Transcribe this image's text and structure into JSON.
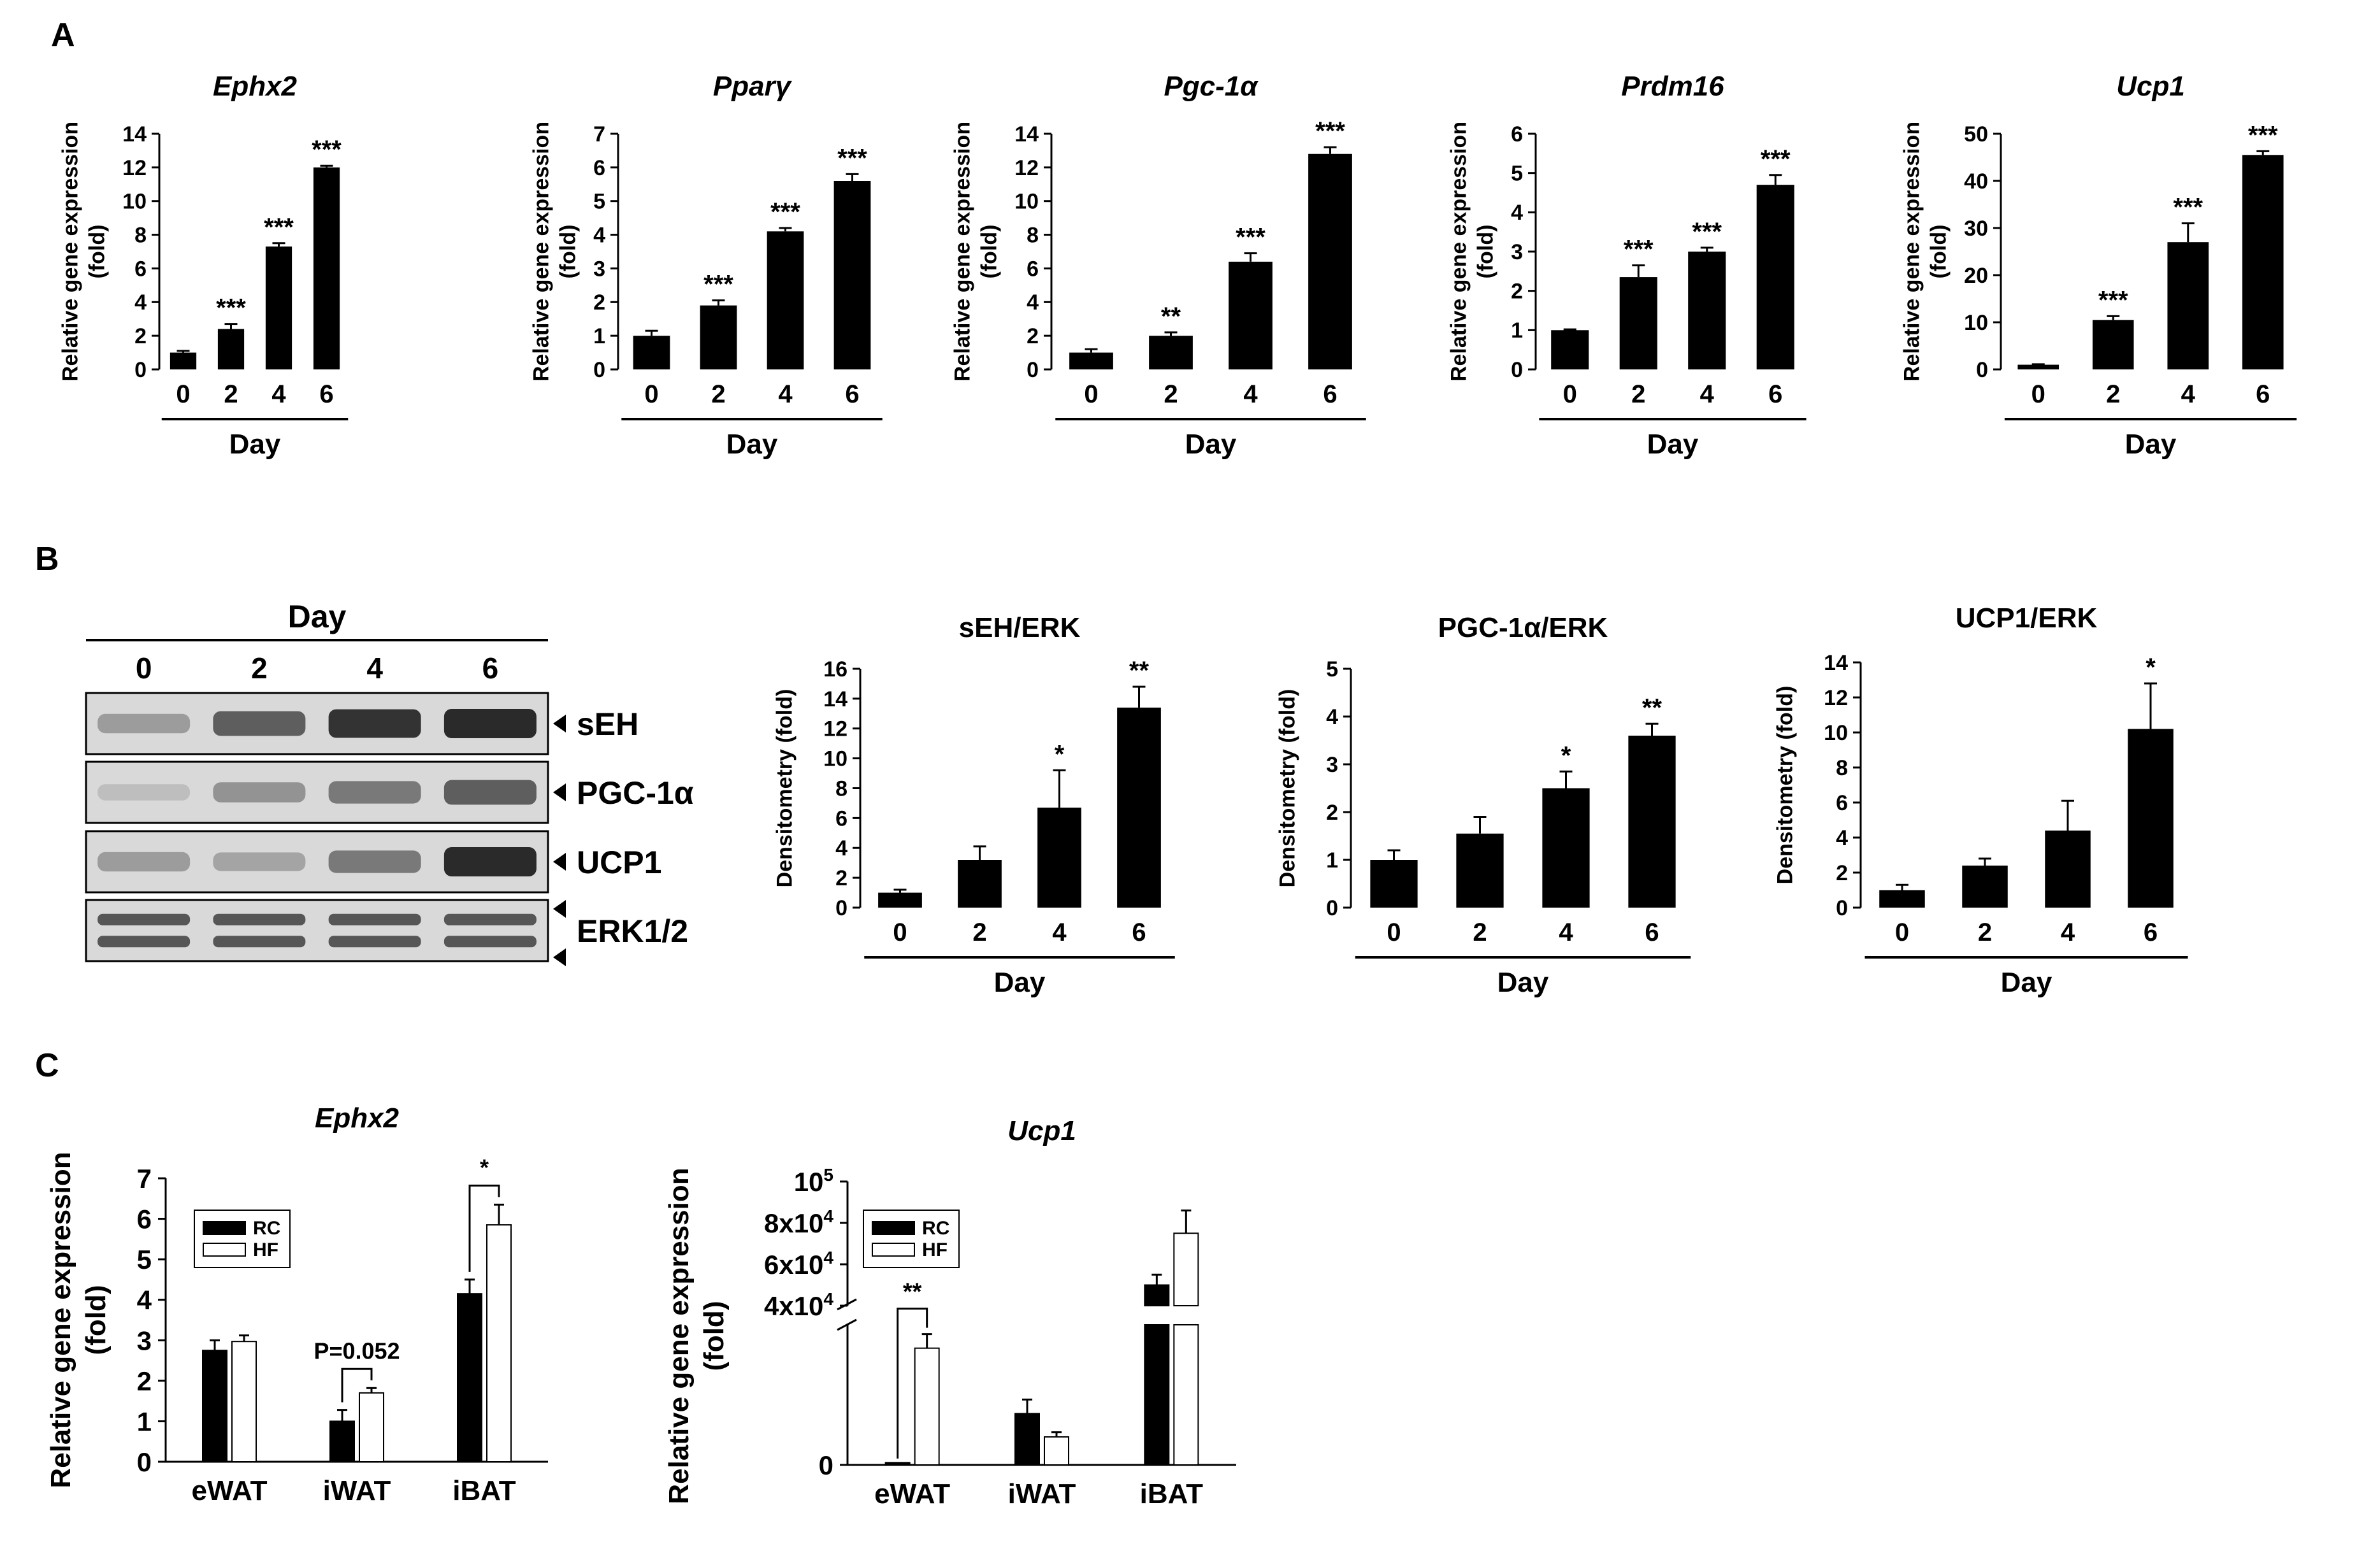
{
  "figure": {
    "panel_labels": [
      "A",
      "B",
      "C"
    ],
    "colors": {
      "bar": "#000000",
      "axis": "#000000",
      "background": "#ffffff",
      "hf_bar": "#ffffff",
      "blot_bg": "#d9d9d9",
      "band": "#2a2a2a"
    }
  },
  "chart_data": [
    {
      "id": "A1",
      "type": "bar",
      "title": "Ephx2",
      "title_italic": true,
      "categories": [
        "0",
        "2",
        "4",
        "6"
      ],
      "values": [
        1.0,
        2.4,
        7.3,
        12.0
      ],
      "errors": [
        0.1,
        0.3,
        0.2,
        0.1
      ],
      "significance": [
        "",
        "***",
        "***",
        "***"
      ],
      "ylim": [
        0,
        14
      ],
      "yticks": [
        0,
        2,
        4,
        6,
        8,
        10,
        12,
        14
      ],
      "ylabel": [
        "Relative gene expression",
        "(fold)"
      ],
      "xlabel": "Day"
    },
    {
      "id": "A2",
      "type": "bar",
      "title": "Pparγ",
      "title_italic": true,
      "categories": [
        "0",
        "2",
        "4",
        "6"
      ],
      "values": [
        1.0,
        1.9,
        4.1,
        5.6
      ],
      "errors": [
        0.15,
        0.15,
        0.1,
        0.2
      ],
      "significance": [
        "",
        "***",
        "***",
        "***"
      ],
      "ylim": [
        0,
        7
      ],
      "yticks": [
        0,
        1,
        2,
        3,
        4,
        5,
        6,
        7
      ],
      "ylabel": [
        "Relative gene expression",
        "(fold)"
      ],
      "xlabel": "Day"
    },
    {
      "id": "A3",
      "type": "bar",
      "title": "Pgc-1α",
      "title_italic": true,
      "categories": [
        "0",
        "2",
        "4",
        "6"
      ],
      "values": [
        1.0,
        2.0,
        6.4,
        12.8
      ],
      "errors": [
        0.2,
        0.2,
        0.5,
        0.4
      ],
      "significance": [
        "",
        "**",
        "***",
        "***"
      ],
      "ylim": [
        0,
        14
      ],
      "yticks": [
        0,
        2,
        4,
        6,
        8,
        10,
        12,
        14
      ],
      "ylabel": [
        "Relative gene expression",
        "(fold)"
      ],
      "xlabel": "Day"
    },
    {
      "id": "A4",
      "type": "bar",
      "title": "Prdm16",
      "title_italic": true,
      "categories": [
        "0",
        "2",
        "4",
        "6"
      ],
      "values": [
        1.0,
        2.35,
        3.0,
        4.7
      ],
      "errors": [
        0.02,
        0.3,
        0.1,
        0.25
      ],
      "significance": [
        "",
        "***",
        "***",
        "***"
      ],
      "ylim": [
        0,
        6
      ],
      "yticks": [
        0,
        1,
        2,
        3,
        4,
        5,
        6
      ],
      "ylabel": [
        "Relative gene expression",
        "(fold)"
      ],
      "xlabel": "Day"
    },
    {
      "id": "A5",
      "type": "bar",
      "title": "Ucp1",
      "title_italic": true,
      "categories": [
        "0",
        "2",
        "4",
        "6"
      ],
      "values": [
        1.0,
        10.5,
        27.0,
        45.5
      ],
      "errors": [
        0.1,
        0.8,
        4.0,
        0.8
      ],
      "significance": [
        "",
        "***",
        "***",
        "***"
      ],
      "ylim": [
        0,
        50
      ],
      "yticks": [
        0,
        10,
        20,
        30,
        40,
        50
      ],
      "ylabel": [
        "Relative gene expression",
        "(fold)"
      ],
      "xlabel": "Day"
    },
    {
      "id": "B1",
      "type": "bar",
      "title": "sEH/ERK",
      "title_italic": false,
      "categories": [
        "0",
        "2",
        "4",
        "6"
      ],
      "values": [
        1.0,
        3.2,
        6.7,
        13.4
      ],
      "errors": [
        0.2,
        0.9,
        2.5,
        1.4
      ],
      "significance": [
        "",
        "",
        "*",
        "**"
      ],
      "ylim": [
        0,
        16
      ],
      "yticks": [
        0,
        2,
        4,
        6,
        8,
        10,
        12,
        14,
        16
      ],
      "ylabel": [
        "Densitometry (fold)"
      ],
      "xlabel": "Day"
    },
    {
      "id": "B2",
      "type": "bar",
      "title": "PGC-1α/ERK",
      "title_italic": false,
      "categories": [
        "0",
        "2",
        "4",
        "6"
      ],
      "values": [
        1.0,
        1.55,
        2.5,
        3.6
      ],
      "errors": [
        0.2,
        0.35,
        0.35,
        0.25
      ],
      "significance": [
        "",
        "",
        "*",
        "**"
      ],
      "ylim": [
        0,
        5
      ],
      "yticks": [
        0,
        1,
        2,
        3,
        4,
        5
      ],
      "ylabel": [
        "Densitometry (fold)"
      ],
      "xlabel": "Day"
    },
    {
      "id": "B3",
      "type": "bar",
      "title": "UCP1/ERK",
      "title_italic": false,
      "categories": [
        "0",
        "2",
        "4",
        "6"
      ],
      "values": [
        1.0,
        2.4,
        4.4,
        10.2
      ],
      "errors": [
        0.3,
        0.4,
        1.7,
        2.6
      ],
      "significance": [
        "",
        "",
        "",
        "*"
      ],
      "ylim": [
        0,
        14
      ],
      "yticks": [
        0,
        2,
        4,
        6,
        8,
        10,
        12,
        14
      ],
      "ylabel": [
        "Densitometry (fold)"
      ],
      "xlabel": "Day"
    },
    {
      "id": "C1",
      "type": "bar",
      "title": "Ephx2",
      "title_italic": true,
      "categories": [
        "eWAT",
        "iWAT",
        "iBAT"
      ],
      "series": [
        {
          "name": "RC",
          "values": [
            2.75,
            1.0,
            4.15
          ],
          "errors": [
            0.25,
            0.28,
            0.35
          ]
        },
        {
          "name": "HF",
          "values": [
            2.97,
            1.7,
            5.85
          ],
          "errors": [
            0.15,
            0.12,
            0.5
          ]
        }
      ],
      "ylim": [
        0,
        7
      ],
      "yticks": [
        0,
        1,
        2,
        3,
        4,
        5,
        6,
        7
      ],
      "ylabel": [
        "Relative gene expression",
        "(fold)"
      ],
      "annotations": [
        {
          "group": 1,
          "text": "P=0.052"
        },
        {
          "group": 2,
          "text": "*"
        }
      ],
      "legend": "top-left"
    },
    {
      "id": "C2",
      "type": "bar",
      "title": "Ucp1",
      "title_italic": true,
      "axis_break": true,
      "categories": [
        "eWAT",
        "iWAT",
        "iBAT"
      ],
      "series": [
        {
          "name": "RC",
          "values": [
            50,
            1100,
            50000
          ],
          "errors": [
            0,
            300,
            5000
          ]
        },
        {
          "name": "HF",
          "values": [
            2500,
            600,
            75000
          ],
          "errors": [
            300,
            100,
            11000
          ]
        }
      ],
      "lower_ylim": [
        0,
        3000
      ],
      "upper_ylim": [
        40000,
        100000
      ],
      "ytick_labels": [
        "0",
        "4x10",
        "6x10",
        "8x10",
        "10"
      ],
      "ytick_superscripts": [
        "",
        "4",
        "4",
        "4",
        "5"
      ],
      "ylabel": [
        "Relative gene expression",
        "(fold)"
      ],
      "annotations": [
        {
          "group": 0,
          "text": "**"
        }
      ],
      "legend": "top-left"
    }
  ],
  "western_blot": {
    "header": "Day",
    "lanes": [
      "0",
      "2",
      "4",
      "6"
    ],
    "rows": [
      {
        "label": "sEH",
        "intensity": [
          0.35,
          0.7,
          0.95,
          1.0
        ]
      },
      {
        "label": "PGC-1α",
        "intensity": [
          0.15,
          0.4,
          0.55,
          0.7
        ]
      },
      {
        "label": "UCP1",
        "intensity": [
          0.35,
          0.3,
          0.55,
          1.0
        ]
      },
      {
        "label": "ERK1/2",
        "intensity": [
          0.75,
          0.75,
          0.75,
          0.75
        ]
      }
    ]
  }
}
